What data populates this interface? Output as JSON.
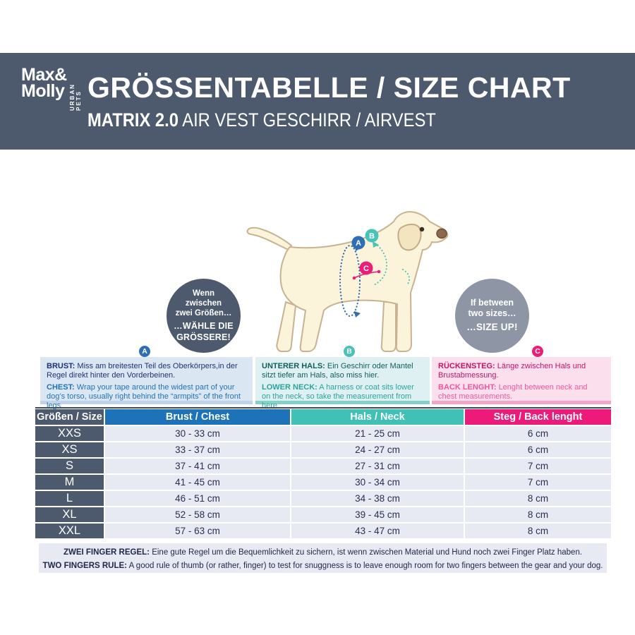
{
  "header": {
    "logo": {
      "line1": "Max&",
      "line2": "Molly",
      "vertical": "URBAN PETS"
    },
    "title": "GRÖSSENTABELLE / SIZE CHART",
    "subtitle_bold": "MATRIX 2.0",
    "subtitle_rest": "AIR VEST GESCHIRR / AIRVEST"
  },
  "badges": {
    "left": {
      "lines": [
        "Wenn",
        "zwischen",
        "zwei Größen…"
      ],
      "bold1": "…WÄHLE DIE",
      "bold2": "GRÖSSERE!"
    },
    "right": {
      "lines": [
        "If between",
        "two sizes…"
      ],
      "bold1": "…SIZE UP!"
    }
  },
  "diagram": {
    "marker_a": "A",
    "marker_b": "B",
    "marker_c": "C"
  },
  "measure_boxes": {
    "a": {
      "marker": "A",
      "de_label": "BRUST:",
      "de_text": "Miss am breitesten Teil des Oberkörpers,in der Regel direkt hinter den Vorderbeinen.",
      "en_label": "CHEST:",
      "en_text": "Wrap your tape around the widest part of your dog’s torso, usually right behind the “armpits” of the front legs."
    },
    "b": {
      "marker": "B",
      "de_label": "UNTERER HALS:",
      "de_text": "Ein Geschirr oder Mantel sitzt tiefer am Hals, also miss hier.",
      "en_label": "LOWER NECK:",
      "en_text": "A harness or coat sits lower on the neck, so take the measurement from here."
    },
    "c": {
      "marker": "C",
      "de_label": "RÜCKENSTEG:",
      "de_text": "Länge zwischen Hals und Brustabmessung.",
      "en_label": "BACK LENGHT:",
      "en_text": "Lenght between neck and chest measurements."
    }
  },
  "size_table": {
    "columns": [
      "Größen / Size",
      "Brust / Chest",
      "Hals / Neck",
      "Steg / Back lenght"
    ],
    "rows": [
      {
        "size": "XXS",
        "chest": "30 - 33 cm",
        "neck": "21 - 25 cm",
        "back": "6 cm"
      },
      {
        "size": "XS",
        "chest": "33 - 37 cm",
        "neck": "24 - 27 cm",
        "back": "6 cm"
      },
      {
        "size": "S",
        "chest": "37 - 41 cm",
        "neck": "27 - 31 cm",
        "back": "7 cm"
      },
      {
        "size": "M",
        "chest": "41 - 45 cm",
        "neck": "30 - 34 cm",
        "back": "7 cm"
      },
      {
        "size": "L",
        "chest": "46 - 51 cm",
        "neck": "34 - 38 cm",
        "back": "8 cm"
      },
      {
        "size": "XL",
        "chest": "52 - 58 cm",
        "neck": "39 - 45 cm",
        "back": "8 cm"
      },
      {
        "size": "XXL",
        "chest": "57 - 63 cm",
        "neck": "43 - 47 cm",
        "back": "8 cm"
      }
    ]
  },
  "footer_note": {
    "de_label": "ZWEI FINGER REGEL:",
    "de_text": "Eine gute Regel um die Bequemlichkeit zu sichern, ist wenn zwischen Material und Hund noch zwei Finger Platz haben.",
    "en_label": "TWO FINGERS RULE:",
    "en_text": "A good rule of thumb (or rather, finger) to test for snuggness is to leave enough room for two fingers between the gear and your dog."
  },
  "colors": {
    "band_slate": "#4d5a6e",
    "badge_light_slate": "#8e96a6",
    "accent_blue": "#1d72b8",
    "accent_teal": "#41c0b5",
    "accent_pink": "#ec1a78",
    "row_bg": "#e7eaf2",
    "dog_body": "#fbf3da",
    "dog_outline": "#c7b391"
  }
}
